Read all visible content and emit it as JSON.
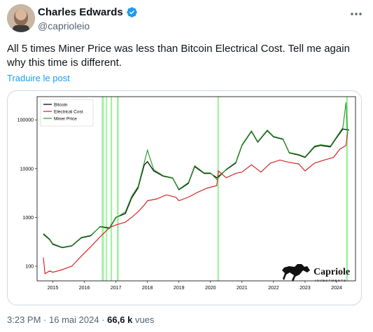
{
  "author": {
    "name": "Charles Edwards",
    "handle": "@caprioleio",
    "more_icon": "ellipsis-icon",
    "verified_icon": "verified-badge-icon",
    "verified_color": "#1d9bf0"
  },
  "tweet": {
    "text": "All 5 times Miner Price was less than Bitcoin Electrical Cost. Tell me again why this time is different.",
    "translate_label": "Traduire le post"
  },
  "meta": {
    "time": "3:23 PM",
    "separator": "·",
    "date": "16 mai 2024",
    "views_count": "66,6 k",
    "views_label": "vues"
  },
  "logo": {
    "name": "Capriole",
    "subtitle": "INVESTMENTS"
  },
  "chart_data": {
    "type": "line",
    "yscale": "log",
    "ylim": [
      50,
      300000
    ],
    "xlim": [
      2014.5,
      2024.6
    ],
    "y_ticks": [
      100,
      1000,
      10000,
      100000
    ],
    "y_tick_labels": [
      "100",
      "1000",
      "10000",
      "100000"
    ],
    "x_ticks": [
      2015,
      2016,
      2017,
      2018,
      2019,
      2020,
      2021,
      2022,
      2023,
      2024
    ],
    "x_tick_labels": [
      "2015",
      "2016",
      "2017",
      "2018",
      "2019",
      "2020",
      "2021",
      "2022",
      "2023",
      "2024"
    ],
    "legend_position": "top-left",
    "grid": false,
    "colors": {
      "bitcoin": "#000000",
      "electrical_cost": "#d62728",
      "miner_price": "#2ca02c",
      "highlight": "#90ee90"
    },
    "highlight_regions": [
      [
        2016.55,
        2016.62
      ],
      [
        2016.68,
        2016.72
      ],
      [
        2016.83,
        2016.88
      ],
      [
        2017.03,
        2017.09
      ],
      [
        2020.22,
        2020.27
      ],
      [
        2024.3,
        2024.36
      ]
    ],
    "series": [
      {
        "name": "Bitcoin",
        "x": [
          2014.7,
          2014.9,
          2015.0,
          2015.3,
          2015.6,
          2015.9,
          2016.2,
          2016.5,
          2016.8,
          2017.0,
          2017.3,
          2017.5,
          2017.7,
          2017.9,
          2018.0,
          2018.2,
          2018.5,
          2018.8,
          2019.0,
          2019.3,
          2019.5,
          2019.8,
          2020.0,
          2020.2,
          2020.5,
          2020.8,
          2021.0,
          2021.3,
          2021.5,
          2021.8,
          2022.0,
          2022.3,
          2022.5,
          2022.8,
          2023.0,
          2023.3,
          2023.5,
          2023.8,
          2024.0,
          2024.2,
          2024.4
        ],
        "y": [
          450,
          350,
          280,
          240,
          260,
          380,
          420,
          650,
          610,
          1000,
          1200,
          2500,
          4000,
          12000,
          14000,
          9000,
          7000,
          6400,
          3700,
          5000,
          11000,
          8000,
          8000,
          6500,
          9500,
          13000,
          30000,
          58000,
          35000,
          60000,
          45000,
          40000,
          21000,
          19000,
          17000,
          28000,
          30000,
          28000,
          43000,
          65000,
          62000
        ]
      },
      {
        "name": "Electrical Cost",
        "x": [
          2014.7,
          2014.75,
          2014.9,
          2015.0,
          2015.3,
          2015.6,
          2015.9,
          2016.2,
          2016.5,
          2016.8,
          2017.0,
          2017.3,
          2017.5,
          2017.7,
          2017.9,
          2018.0,
          2018.3,
          2018.6,
          2018.9,
          2019.0,
          2019.3,
          2019.6,
          2019.9,
          2020.2,
          2020.25,
          2020.5,
          2020.8,
          2021.0,
          2021.3,
          2021.6,
          2021.9,
          2022.2,
          2022.5,
          2022.8,
          2023.0,
          2023.3,
          2023.6,
          2023.9,
          2024.1,
          2024.3,
          2024.35
        ],
        "y": [
          150,
          70,
          80,
          75,
          85,
          100,
          160,
          250,
          400,
          620,
          700,
          800,
          1000,
          1300,
          1800,
          2200,
          2400,
          2900,
          2600,
          2200,
          2600,
          3300,
          4000,
          4500,
          9000,
          6500,
          8000,
          8500,
          12000,
          8500,
          13000,
          15000,
          13500,
          12500,
          9000,
          13000,
          15000,
          17000,
          25000,
          30000,
          55000
        ]
      },
      {
        "name": "Miner Price",
        "x": [
          2014.7,
          2014.9,
          2015.0,
          2015.3,
          2015.6,
          2015.9,
          2016.2,
          2016.5,
          2016.8,
          2017.0,
          2017.3,
          2017.5,
          2017.7,
          2017.9,
          2018.0,
          2018.2,
          2018.5,
          2018.8,
          2019.0,
          2019.3,
          2019.5,
          2019.8,
          2020.0,
          2020.2,
          2020.5,
          2020.8,
          2021.0,
          2021.3,
          2021.5,
          2021.8,
          2022.0,
          2022.3,
          2022.5,
          2022.8,
          2023.0,
          2023.3,
          2023.5,
          2023.8,
          2024.0,
          2024.2,
          2024.3,
          2024.35
        ],
        "y": [
          470,
          360,
          290,
          245,
          265,
          390,
          430,
          640,
          590,
          980,
          1300,
          2700,
          4300,
          13500,
          24000,
          9500,
          7200,
          6500,
          3800,
          5200,
          11500,
          8200,
          8200,
          6000,
          9700,
          13500,
          31000,
          60000,
          36000,
          62000,
          46000,
          41000,
          21500,
          19500,
          17500,
          29000,
          31000,
          29000,
          45000,
          70000,
          230000,
          52000
        ]
      }
    ]
  }
}
